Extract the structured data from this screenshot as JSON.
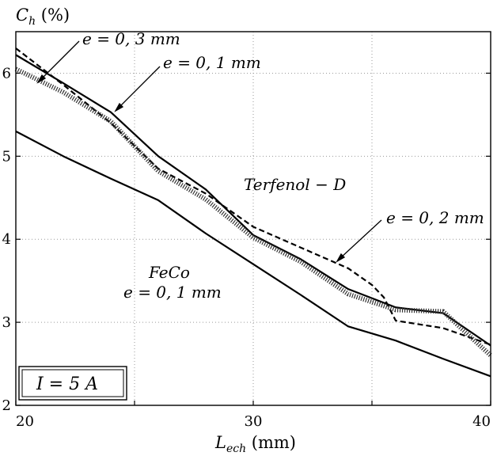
{
  "chart_data": {
    "type": "line",
    "xlabel": "L_ech (mm)",
    "ylabel": "C_h (%)",
    "xlim": [
      20,
      40
    ],
    "ylim": [
      2,
      6.5
    ],
    "xticks": [
      20,
      30,
      40
    ],
    "yticks": [
      2,
      3,
      4,
      5,
      6
    ],
    "grid": true,
    "inset_label": "I = 5 A",
    "series": [
      {
        "style": "solid",
        "x": [
          20,
          22,
          24,
          26,
          28,
          30,
          32,
          34,
          36,
          38,
          40
        ],
        "y": [
          6.22,
          5.88,
          5.53,
          5.0,
          4.6,
          4.05,
          3.76,
          3.4,
          3.18,
          3.11,
          2.72
        ]
      },
      {
        "style": "dashed",
        "x": [
          20,
          22,
          24,
          26,
          28,
          30,
          32,
          34,
          35,
          35.5,
          36,
          38,
          40
        ],
        "y": [
          6.3,
          5.86,
          5.4,
          4.85,
          4.55,
          4.15,
          3.9,
          3.65,
          3.45,
          3.3,
          3.02,
          2.93,
          2.73
        ]
      },
      {
        "style": "dotted",
        "x": [
          20,
          22,
          24,
          26,
          28,
          30,
          32,
          34,
          36,
          38,
          40
        ],
        "y": [
          6.05,
          5.77,
          5.42,
          4.82,
          4.48,
          4.02,
          3.73,
          3.34,
          3.15,
          3.13,
          2.6
        ]
      },
      {
        "style": "solid",
        "x": [
          20,
          22,
          24,
          26,
          28,
          30,
          32,
          34,
          36,
          38,
          40
        ],
        "y": [
          5.3,
          5.0,
          4.73,
          4.47,
          4.07,
          3.7,
          3.33,
          2.95,
          2.78,
          2.56,
          2.35
        ]
      }
    ],
    "annotations": [
      {
        "text": "e = 0, 3 mm"
      },
      {
        "text": "e = 0, 1 mm"
      },
      {
        "text": "Terfenol − D"
      },
      {
        "text": "e = 0, 2 mm"
      },
      {
        "text": "FeCo"
      },
      {
        "text": "e = 0, 1 mm"
      }
    ]
  }
}
